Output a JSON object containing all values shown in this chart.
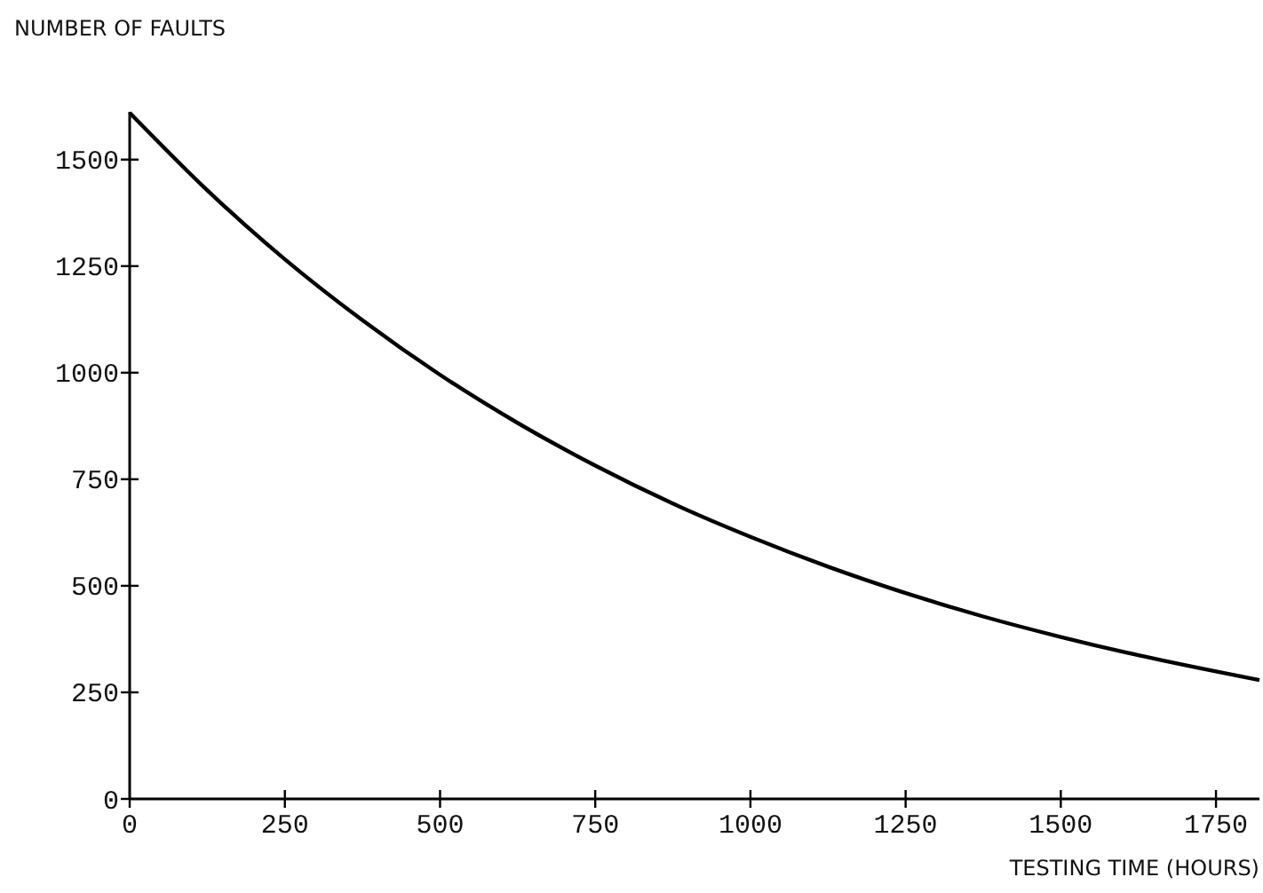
{
  "chart_data": {
    "type": "line",
    "xlabel": "TESTING TIME (HOURS)",
    "ylabel": "NUMBER OF FAULTS",
    "x": [
      0,
      125,
      250,
      375,
      500,
      625,
      750,
      875,
      1000,
      1125,
      1250,
      1375,
      1500,
      1625,
      1750,
      1820
    ],
    "series": [
      {
        "color": "#000000",
        "values": [
          1610,
          1428,
          1266,
          1123,
          995,
          882,
          782,
          693,
          615,
          545,
          483,
          428,
          380,
          337,
          299,
          279
        ]
      }
    ],
    "xlim": [
      0,
      1820
    ],
    "xticks": [
      0,
      250,
      500,
      750,
      1000,
      1250,
      1500,
      1750
    ],
    "ylim": [
      0,
      1612
    ],
    "yticks": [
      0,
      250,
      500,
      750,
      1000,
      1250,
      1500
    ],
    "grid": false,
    "marker": "none",
    "line_style": "solid"
  }
}
